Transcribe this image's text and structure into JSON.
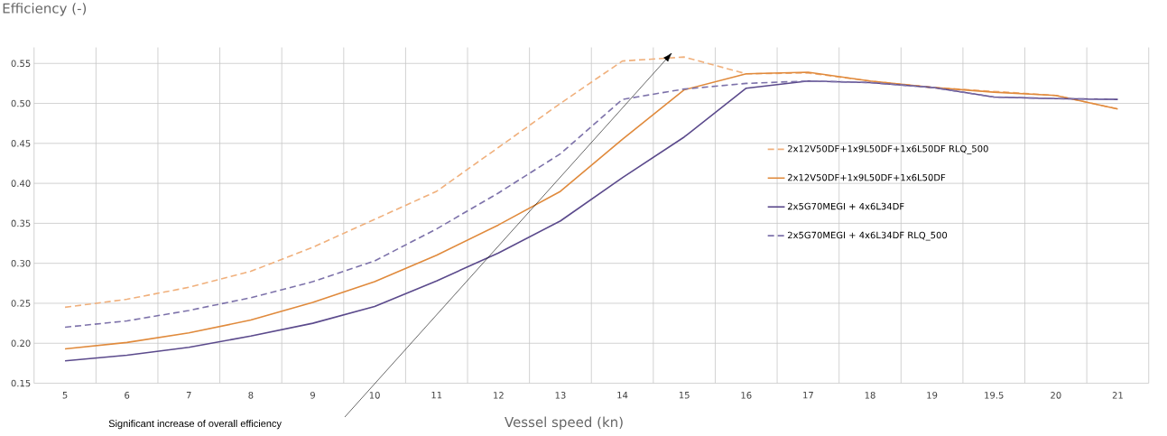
{
  "chart_data": {
    "type": "line",
    "ylabel": "Efficiency (-)",
    "xlabel": "Vessel speed (kn)",
    "annotations": [
      "Significant increase of overall efficiency"
    ],
    "categories": [
      "5",
      "6",
      "7",
      "8",
      "9",
      "10",
      "11",
      "12",
      "13",
      "14",
      "15",
      "16",
      "17",
      "18",
      "19",
      "19.5",
      "20",
      "21"
    ],
    "ylim": [
      0.15,
      0.57
    ],
    "yticks": [
      0.15,
      {
        "value": 0.2,
        "label": "0.20"
      },
      0.25,
      {
        "value": 0.3,
        "label": "0.30"
      },
      0.35,
      {
        "value": 0.4,
        "label": "0.40"
      },
      0.45,
      {
        "value": 0.5,
        "label": "0.50"
      },
      0.55
    ],
    "grid": true,
    "legend": "right",
    "series": [
      {
        "name": "2x12V50DF+1x9L50DF+1x6L50DF RLQ_500",
        "color": "#f0b07c",
        "line_style": "dashed",
        "values": [
          0.245,
          0.255,
          0.27,
          0.29,
          0.32,
          0.355,
          0.39,
          0.445,
          0.5,
          0.553,
          0.558,
          0.537,
          0.538,
          0.528,
          0.52,
          0.515,
          0.51,
          0.493
        ]
      },
      {
        "name": "2x12V50DF+1x9L50DF+1x6L50DF",
        "color": "#e08a3c",
        "line_style": "solid",
        "values": [
          0.193,
          0.201,
          0.213,
          0.229,
          0.251,
          0.277,
          0.31,
          0.348,
          0.39,
          0.455,
          0.517,
          0.537,
          0.539,
          0.528,
          0.52,
          0.514,
          0.51,
          0.493
        ]
      },
      {
        "name": "2x5G70MEGI + 4x6L34DF",
        "color": "#5b4a8c",
        "line_style": "solid",
        "values": [
          0.178,
          0.185,
          0.195,
          0.209,
          0.225,
          0.246,
          0.278,
          0.313,
          0.353,
          0.407,
          0.458,
          0.519,
          0.528,
          0.526,
          0.52,
          0.508,
          0.506,
          0.505
        ]
      },
      {
        "name": "2x5G70MEGI + 4x6L34DF RLQ_500",
        "color": "#7d72aa",
        "line_style": "dashed",
        "values": [
          0.22,
          0.228,
          0.241,
          0.257,
          0.277,
          0.303,
          0.343,
          0.388,
          0.437,
          0.505,
          0.518,
          0.525,
          0.528,
          0.526,
          0.52,
          0.508,
          0.506,
          0.505
        ]
      }
    ]
  }
}
